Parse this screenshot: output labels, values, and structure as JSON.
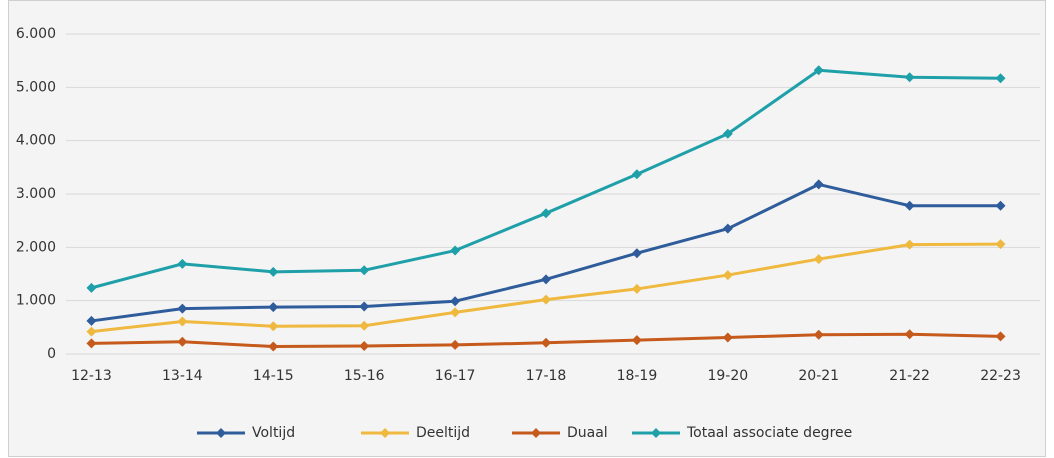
{
  "chart_data": {
    "type": "line",
    "categories": [
      "12-13",
      "13-14",
      "14-15",
      "15-16",
      "16-17",
      "17-18",
      "18-19",
      "19-20",
      "20-21",
      "21-22",
      "22-23"
    ],
    "series": [
      {
        "name": "Voltijd",
        "color": "#2f5c9b",
        "values": [
          620,
          850,
          880,
          890,
          990,
          1400,
          1890,
          2350,
          3180,
          2780,
          2780
        ]
      },
      {
        "name": "Deeltijd",
        "color": "#efb93f",
        "values": [
          420,
          610,
          520,
          530,
          780,
          1020,
          1220,
          1480,
          1780,
          2050,
          2060
        ]
      },
      {
        "name": "Duaal",
        "color": "#c55a1c",
        "values": [
          200,
          230,
          140,
          150,
          170,
          210,
          260,
          310,
          360,
          370,
          330
        ]
      },
      {
        "name": "Totaal associate degree",
        "color": "#1fa0a9",
        "values": [
          1240,
          1690,
          1540,
          1570,
          1940,
          2640,
          3370,
          4130,
          5320,
          5190,
          5170
        ]
      }
    ],
    "ylim": [
      0,
      6000
    ],
    "yticks": [
      0,
      {
        "value": 1000,
        "label": "1.000"
      },
      {
        "value": 2000,
        "label": "2.000"
      },
      {
        "value": 3000,
        "label": "3.000"
      },
      {
        "value": 4000,
        "label": "4.000"
      },
      {
        "value": 5000,
        "label": "5.000"
      },
      {
        "value": 6000,
        "label": "6.000"
      }
    ],
    "grid": true,
    "legend": "bottom"
  }
}
